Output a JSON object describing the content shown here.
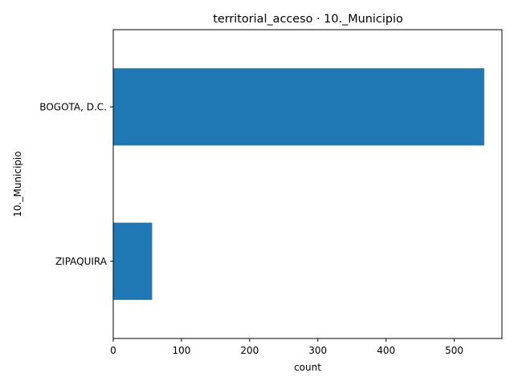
{
  "chart_data": {
    "type": "bar",
    "orientation": "horizontal",
    "title": "territorial_acceso · 10._Municipio",
    "xlabel": "count",
    "ylabel": "10._Municipio",
    "categories": [
      "BOGOTA, D.C.",
      "ZIPAQUIRA"
    ],
    "values": [
      544,
      57
    ],
    "xlim": [
      0,
      570
    ],
    "xticks": [
      0,
      100,
      200,
      300,
      400,
      500
    ],
    "bar_color": "#1f77b4",
    "grid": false,
    "legend": "none"
  }
}
